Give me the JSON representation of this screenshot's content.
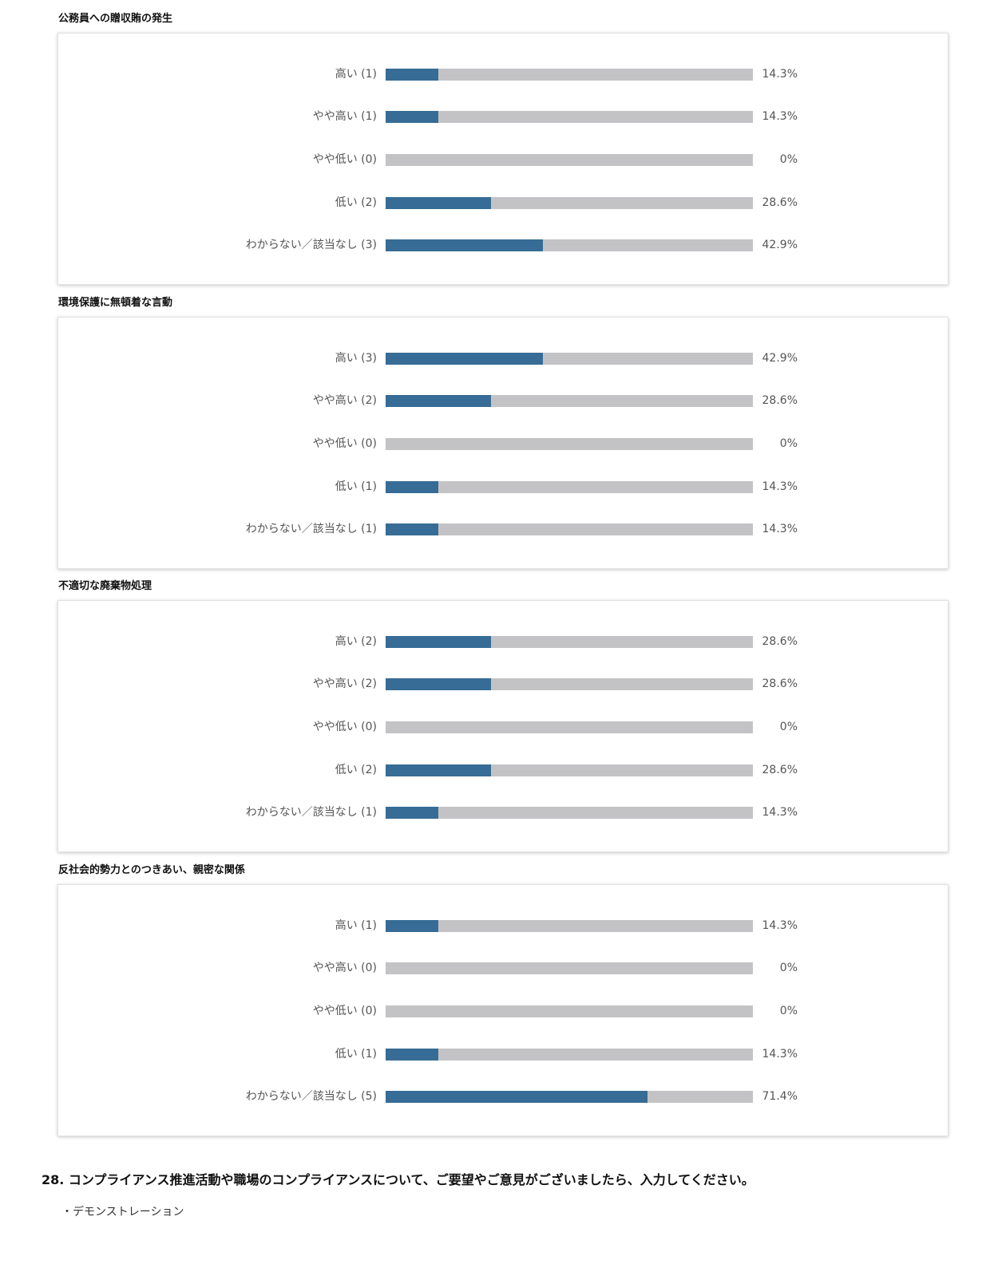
{
  "colors": {
    "filled": "#366c95",
    "track": "#c3c3c5"
  },
  "chart_data": [
    {
      "type": "bar",
      "title": "公務員への贈収賄の発生",
      "categories": [
        "高い (1)",
        "やや高い (1)",
        "やや低い (0)",
        "低い (2)",
        "わからない／該当なし (3)"
      ],
      "values": [
        14.3,
        14.3,
        0,
        28.6,
        42.9
      ],
      "value_labels": [
        "14.3%",
        "14.3%",
        "0%",
        "28.6%",
        "42.9%"
      ],
      "ylim": [
        0,
        100
      ]
    },
    {
      "type": "bar",
      "title": "環境保護に無頓着な言動",
      "categories": [
        "高い (3)",
        "やや高い (2)",
        "やや低い (0)",
        "低い (1)",
        "わからない／該当なし (1)"
      ],
      "values": [
        42.9,
        28.6,
        0,
        14.3,
        14.3
      ],
      "value_labels": [
        "42.9%",
        "28.6%",
        "0%",
        "14.3%",
        "14.3%"
      ],
      "ylim": [
        0,
        100
      ]
    },
    {
      "type": "bar",
      "title": "不適切な廃棄物処理",
      "categories": [
        "高い (2)",
        "やや高い (2)",
        "やや低い (0)",
        "低い (2)",
        "わからない／該当なし (1)"
      ],
      "values": [
        28.6,
        28.6,
        0,
        28.6,
        14.3
      ],
      "value_labels": [
        "28.6%",
        "28.6%",
        "0%",
        "28.6%",
        "14.3%"
      ],
      "ylim": [
        0,
        100
      ]
    },
    {
      "type": "bar",
      "title": "反社会的勢力とのつきあい、親密な関係",
      "categories": [
        "高い (1)",
        "やや高い (0)",
        "やや低い (0)",
        "低い (1)",
        "わからない／該当なし (5)"
      ],
      "values": [
        14.3,
        0,
        0,
        14.3,
        71.4
      ],
      "value_labels": [
        "14.3%",
        "0%",
        "0%",
        "14.3%",
        "71.4%"
      ],
      "ylim": [
        0,
        100
      ]
    }
  ],
  "question": {
    "title": "28. コンプライアンス推進活動や職場のコンプライアンスについて、ご要望やご意見がございましたら、入力してください。",
    "answer": "・デモンストレーション"
  }
}
